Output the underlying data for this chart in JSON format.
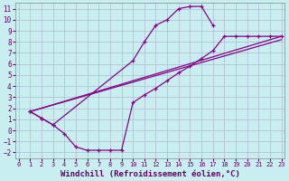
{
  "background_color": "#c8eef0",
  "grid_color": "#b0b8d0",
  "line_color": "#880088",
  "xlabel": "Windchill (Refroidissement éolien,°C)",
  "xlabel_fontsize": 6.5,
  "ylabel_values": [
    -2,
    -1,
    0,
    1,
    2,
    3,
    4,
    5,
    6,
    7,
    8,
    9,
    10,
    11
  ],
  "xlabel_values": [
    0,
    1,
    2,
    3,
    4,
    5,
    6,
    7,
    8,
    9,
    10,
    11,
    12,
    13,
    14,
    15,
    16,
    17,
    18,
    19,
    20,
    21,
    22,
    23
  ],
  "xlim": [
    -0.3,
    23.3
  ],
  "ylim": [
    -2.5,
    11.5
  ],
  "curve_upper_x": [
    1,
    2,
    3,
    10,
    11,
    12,
    13,
    14,
    15,
    16,
    17
  ],
  "curve_upper_y": [
    1.7,
    1.1,
    0.5,
    6.3,
    8.0,
    9.5,
    10.0,
    11.0,
    11.2,
    11.2,
    9.5
  ],
  "curve_lower_x": [
    1,
    2,
    3,
    4,
    5,
    6,
    7,
    8,
    9,
    10,
    11,
    12,
    13,
    14,
    15,
    16,
    17,
    18,
    19,
    20,
    21,
    22,
    23
  ],
  "curve_lower_y": [
    1.7,
    1.1,
    0.5,
    -0.3,
    -1.5,
    -1.8,
    -1.8,
    -1.8,
    -1.8,
    2.5,
    3.2,
    3.8,
    4.5,
    5.2,
    5.8,
    6.5,
    7.2,
    8.5,
    8.5,
    8.5,
    8.5,
    8.5,
    8.5
  ],
  "line1_x": [
    1,
    23
  ],
  "line1_y": [
    1.7,
    8.5
  ],
  "line2_x": [
    1,
    23
  ],
  "line2_y": [
    1.7,
    8.2
  ]
}
